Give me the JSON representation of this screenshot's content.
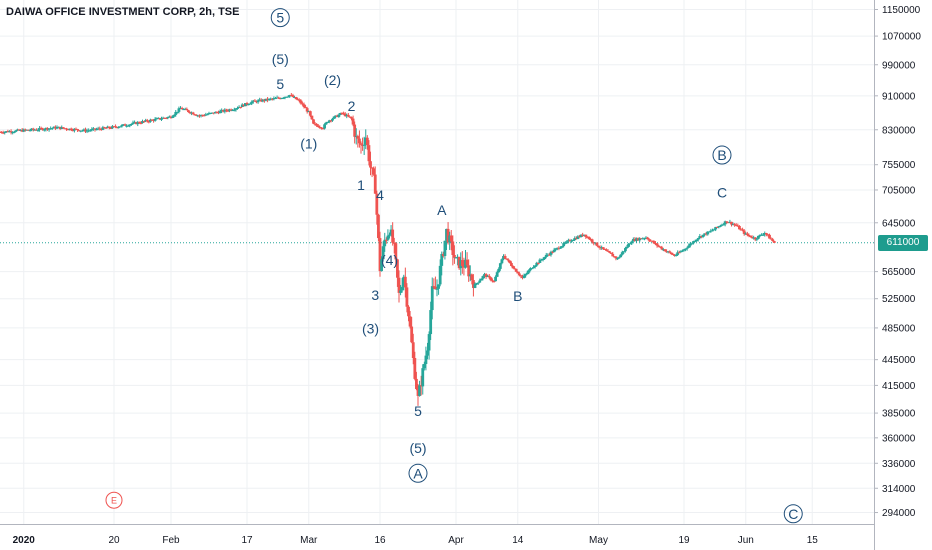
{
  "chart_data": {
    "type": "candlestick",
    "title": "DAIWA OFFICE INVESTMENT CORP, 2h, TSE",
    "y_axis": {
      "scale": "log",
      "side": "right",
      "ticks": [
        1150000,
        1070000,
        990000,
        910000,
        830000,
        755000,
        705000,
        645000,
        565000,
        525000,
        485000,
        445000,
        415000,
        385000,
        360000,
        336000,
        314000,
        294000
      ],
      "ylim": [
        285000,
        1180000
      ]
    },
    "x_axis": {
      "range": [
        "2019-12-27",
        "2020-06-28"
      ],
      "ticks": [
        {
          "date": "2020-01-01",
          "label": "2020",
          "bold": true
        },
        {
          "date": "2020-01-20",
          "label": "20"
        },
        {
          "date": "2020-02-01",
          "label": "Feb"
        },
        {
          "date": "2020-02-17",
          "label": "17"
        },
        {
          "date": "2020-03-01",
          "label": "Mar"
        },
        {
          "date": "2020-03-16",
          "label": "16"
        },
        {
          "date": "2020-04-01",
          "label": "Apr"
        },
        {
          "date": "2020-04-14",
          "label": "14"
        },
        {
          "date": "2020-05-01",
          "label": "May"
        },
        {
          "date": "2020-05-19",
          "label": "19"
        },
        {
          "date": "2020-06-01",
          "label": "Jun"
        },
        {
          "date": "2020-06-15",
          "label": "15"
        }
      ]
    },
    "grid": true,
    "current_price": {
      "value": 611000,
      "label": "611000"
    },
    "colors": {
      "up": "#26a69a",
      "down": "#ef5350",
      "price_line": "#26a69a",
      "wave_label": "#1f4e79",
      "event_marker": "#ef5350"
    },
    "price_path": [
      [
        "2019-12-27",
        825000
      ],
      [
        "2020-01-03",
        830000
      ],
      [
        "2020-01-08",
        835000
      ],
      [
        "2020-01-14",
        828000
      ],
      [
        "2020-01-20",
        836000
      ],
      [
        "2020-01-27",
        850000
      ],
      [
        "2020-02-01",
        860000
      ],
      [
        "2020-02-03",
        880000
      ],
      [
        "2020-02-07",
        862000
      ],
      [
        "2020-02-14",
        878000
      ],
      [
        "2020-02-18",
        895000
      ],
      [
        "2020-02-24",
        905000
      ],
      [
        "2020-02-26",
        912000
      ],
      [
        "2020-02-28",
        897000
      ],
      [
        "2020-03-01",
        870000
      ],
      [
        "2020-03-02",
        842000
      ],
      [
        "2020-03-04",
        835000
      ],
      [
        "2020-03-05",
        850000
      ],
      [
        "2020-03-08",
        868000
      ],
      [
        "2020-03-10",
        855000
      ],
      [
        "2020-03-11",
        810000
      ],
      [
        "2020-03-12",
        795000
      ],
      [
        "2020-03-13",
        815000
      ],
      [
        "2020-03-14",
        750000
      ],
      [
        "2020-03-15",
        710000
      ],
      [
        "2020-03-16",
        570000
      ],
      [
        "2020-03-17",
        615000
      ],
      [
        "2020-03-18",
        635000
      ],
      [
        "2020-03-19",
        600000
      ],
      [
        "2020-03-20",
        530000
      ],
      [
        "2020-03-21",
        560000
      ],
      [
        "2020-03-22",
        505000
      ],
      [
        "2020-03-23",
        445000
      ],
      [
        "2020-03-24",
        400000
      ],
      [
        "2020-03-25",
        430000
      ],
      [
        "2020-03-26",
        462000
      ],
      [
        "2020-03-27",
        535000
      ],
      [
        "2020-03-28",
        540000
      ],
      [
        "2020-03-30",
        630000
      ],
      [
        "2020-04-01",
        580000
      ],
      [
        "2020-04-03",
        575000
      ],
      [
        "2020-04-05",
        545000
      ],
      [
        "2020-04-07",
        560000
      ],
      [
        "2020-04-09",
        550000
      ],
      [
        "2020-04-11",
        590000
      ],
      [
        "2020-04-13",
        572000
      ],
      [
        "2020-04-15",
        555000
      ],
      [
        "2020-04-17",
        572000
      ],
      [
        "2020-04-20",
        590000
      ],
      [
        "2020-04-22",
        600000
      ],
      [
        "2020-04-25",
        615000
      ],
      [
        "2020-04-28",
        625000
      ],
      [
        "2020-05-01",
        605000
      ],
      [
        "2020-05-03",
        595000
      ],
      [
        "2020-05-05",
        585000
      ],
      [
        "2020-05-08",
        615000
      ],
      [
        "2020-05-11",
        620000
      ],
      [
        "2020-05-14",
        603000
      ],
      [
        "2020-05-17",
        590000
      ],
      [
        "2020-05-19",
        600000
      ],
      [
        "2020-05-22",
        620000
      ],
      [
        "2020-05-25",
        632000
      ],
      [
        "2020-05-28",
        648000
      ],
      [
        "2020-05-30",
        640000
      ],
      [
        "2020-06-01",
        625000
      ],
      [
        "2020-06-03",
        618000
      ],
      [
        "2020-06-05",
        628000
      ],
      [
        "2020-06-07",
        611000
      ]
    ],
    "annotations": [
      {
        "text": "5",
        "date": "2020-02-24",
        "price": 1125000,
        "circled": true
      },
      {
        "text": "(5)",
        "date": "2020-02-24",
        "price": 1005000
      },
      {
        "text": "5",
        "date": "2020-02-24",
        "price": 940000
      },
      {
        "text": "(2)",
        "date": "2020-03-06",
        "price": 950000
      },
      {
        "text": "2",
        "date": "2020-03-10",
        "price": 885000
      },
      {
        "text": "(1)",
        "date": "2020-03-01",
        "price": 800000
      },
      {
        "text": "1",
        "date": "2020-03-12",
        "price": 715000
      },
      {
        "text": "4",
        "date": "2020-03-16",
        "price": 695000
      },
      {
        "text": "A",
        "date": "2020-03-29",
        "price": 668000
      },
      {
        "text": "(4)",
        "date": "2020-03-18",
        "price": 583000
      },
      {
        "text": "3",
        "date": "2020-03-15",
        "price": 530000
      },
      {
        "text": "(3)",
        "date": "2020-03-14",
        "price": 484000
      },
      {
        "text": "B",
        "date": "2020-04-14",
        "price": 529000
      },
      {
        "text": "B",
        "date": "2020-05-27",
        "price": 775000,
        "circled": true
      },
      {
        "text": "C",
        "date": "2020-05-27",
        "price": 700000
      },
      {
        "text": "5",
        "date": "2020-03-24",
        "price": 387000
      },
      {
        "text": "(5)",
        "date": "2020-03-24",
        "price": 350000
      },
      {
        "text": "A",
        "date": "2020-03-24",
        "price": 327000,
        "circled": true
      },
      {
        "text": "C",
        "date": "2020-06-11",
        "price": 293000,
        "circled": true
      }
    ],
    "event_markers": [
      {
        "text": "E",
        "date": "2020-01-20",
        "price": 304000
      }
    ]
  }
}
